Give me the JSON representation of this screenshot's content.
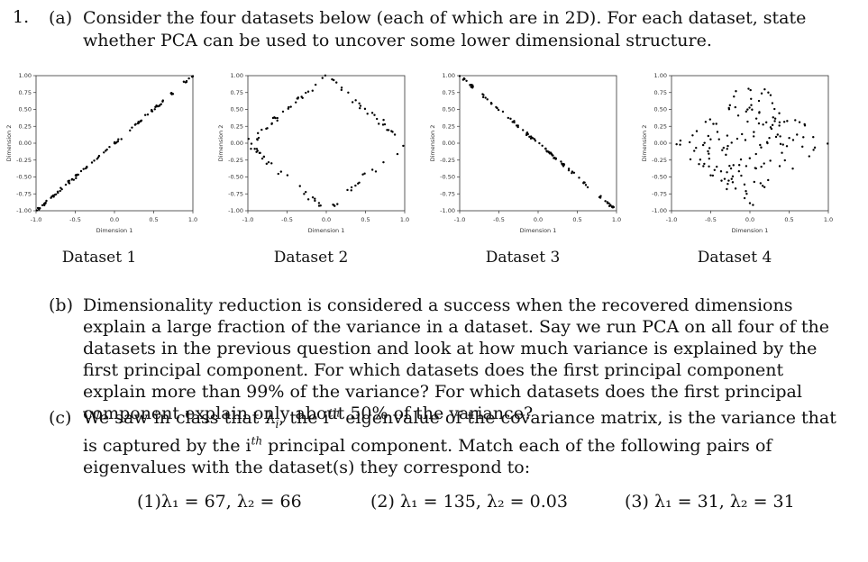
{
  "question": {
    "number": "1.",
    "part_a": {
      "label": "(a)",
      "text": "Consider the four datasets below (each of which are in 2D). For each dataset, state whether PCA can be used to uncover some lower dimensional structure."
    },
    "part_b": {
      "label": "(b)",
      "text": "Dimensionality reduction is considered a success when the recovered dimensions explain a large fraction of the variance in a dataset. Say we run PCA on all four of the datasets in the previous question and look at how much variance is explained by the first principal component. For which datasets does the first principal component explain more than 99% of the variance? For which datasets does the first principal component explain only about 50% of the variance?"
    },
    "part_c": {
      "label": "(c)",
      "text_1": "We saw in class that λ",
      "sub_i": "i",
      "text_2": ", the i",
      "sup_th": "th",
      "text_3": " eigenvalue of the covariance matrix, is the variance that is captured by the i",
      "text_4": " principal component. Match each of the following pairs of eigenvalues with the dataset(s) they correspond to:"
    },
    "eigenvalue_pairs": [
      {
        "label": "(1)",
        "text": "λ₁ = 67, λ₂ = 66"
      },
      {
        "label": "(2)",
        "text": "λ₁ = 135, λ₂ = 0.03"
      },
      {
        "label": "(3)",
        "text": "λ₁ = 31, λ₂ = 31"
      }
    ]
  },
  "chart_data": [
    {
      "type": "scatter",
      "caption": "Dataset 1",
      "xlabel": "Dimension 1",
      "ylabel": "Dimension 2",
      "xlim": [
        -1.0,
        1.0
      ],
      "ylim": [
        -1.0,
        1.0
      ],
      "xticks": [
        "-1.0",
        "-0.5",
        "0.0",
        "0.5",
        "1.0"
      ],
      "yticks": [
        "1.00",
        "0.75",
        "0.50",
        "0.25",
        "0.00",
        "-0.25",
        "-0.50",
        "-0.75",
        "-1.00"
      ],
      "shape": "line y = x",
      "n_points": 100
    },
    {
      "type": "scatter",
      "caption": "Dataset 2",
      "xlabel": "Dimension 1",
      "ylabel": "Dimension 2",
      "xlim": [
        -1.0,
        1.0
      ],
      "ylim": [
        -1.0,
        1.0
      ],
      "xticks": [
        "-1.0",
        "-0.5",
        "0.0",
        "0.5",
        "1.0"
      ],
      "yticks": [
        "1.00",
        "0.75",
        "0.50",
        "0.25",
        "0.00",
        "-0.25",
        "-0.50",
        "-0.75",
        "-1.00"
      ],
      "shape": "diamond outline |x| + |y| = 1",
      "n_points": 100
    },
    {
      "type": "scatter",
      "caption": "Dataset 3",
      "xlabel": "Dimension 1",
      "ylabel": "Dimension 2",
      "xlim": [
        -1.0,
        1.0
      ],
      "ylim": [
        -1.0,
        1.0
      ],
      "xticks": [
        "-1.0",
        "-0.5",
        "0.0",
        "0.5",
        "1.0"
      ],
      "yticks": [
        "1.00",
        "0.75",
        "0.50",
        "0.25",
        "0.00",
        "-0.25",
        "-0.50",
        "-0.75",
        "-1.00"
      ],
      "shape": "line y = -x",
      "n_points": 100
    },
    {
      "type": "scatter",
      "caption": "Dataset 4",
      "xlabel": "Dimension 1",
      "ylabel": "Dimension 2",
      "xlim": [
        -1.0,
        1.0
      ],
      "ylim": [
        -1.0,
        1.0
      ],
      "xticks": [
        "-1.0",
        "-0.5",
        "0.0",
        "0.5",
        "1.0"
      ],
      "yticks": [
        "1.00",
        "0.75",
        "0.50",
        "0.25",
        "0.00",
        "-0.25",
        "-0.50",
        "-0.75",
        "-1.00"
      ],
      "shape": "filled diamond |x| + |y| <= 1",
      "n_points": 150
    }
  ]
}
